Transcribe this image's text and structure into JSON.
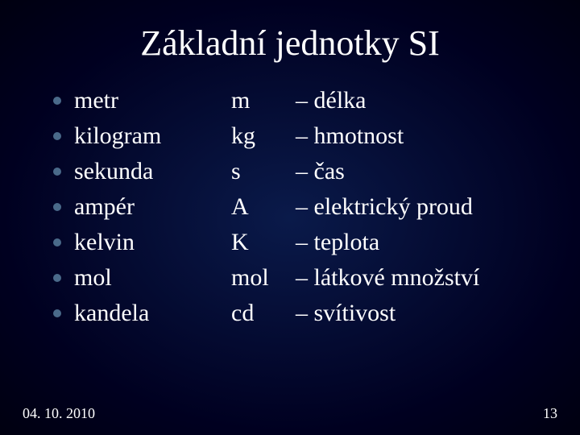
{
  "title": "Základní jednotky SI",
  "units": [
    {
      "name": "metr",
      "symbol": "m",
      "desc": "– délka"
    },
    {
      "name": "kilogram",
      "symbol": "kg",
      "desc": "– hmotnost"
    },
    {
      "name": "sekunda",
      "symbol": "s",
      "desc": "– čas"
    },
    {
      "name": "ampér",
      "symbol": "A",
      "desc": "– elektrický proud"
    },
    {
      "name": "kelvin",
      "symbol": "K",
      "desc": "– teplota"
    },
    {
      "name": "mol",
      "symbol": "mol",
      "desc": "– látkové množství"
    },
    {
      "name": "kandela",
      "symbol": "cd",
      "desc": "– svítivost"
    }
  ],
  "footer": {
    "date": "04. 10. 2010",
    "page": "13"
  },
  "colors": {
    "background_center": "#0a1a4a",
    "background_edge": "#000010",
    "text": "#ffffff",
    "bullet": "#4a6a8a"
  },
  "typography": {
    "title_fontsize": 44,
    "body_fontsize": 30,
    "footer_fontsize": 18,
    "font_family": "Times New Roman"
  }
}
